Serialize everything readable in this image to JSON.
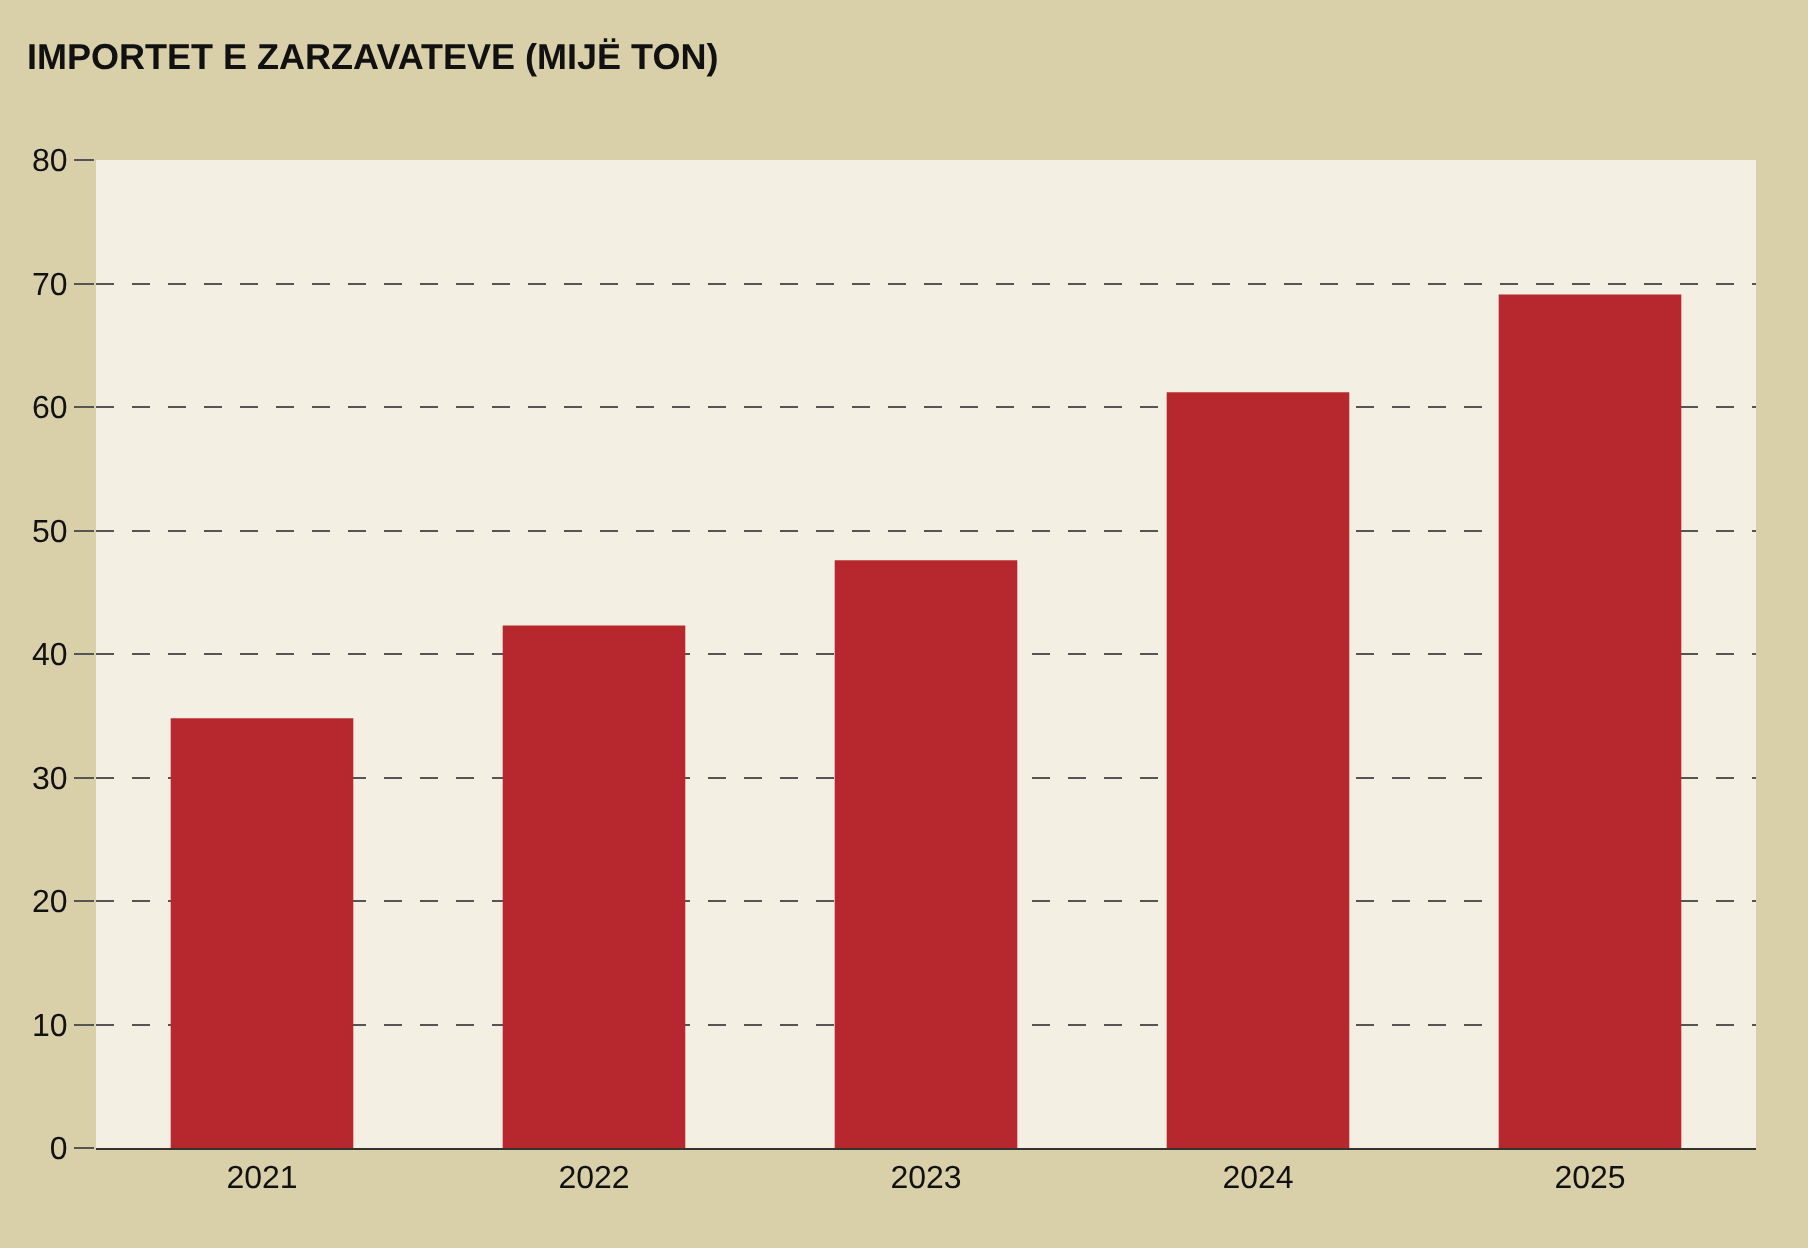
{
  "chart_data": {
    "type": "bar",
    "title": "IMPORTET E ZARZAVATEVE (MIJË TON)",
    "categories": [
      "2021",
      "2022",
      "2023",
      "2024",
      "2025"
    ],
    "values": [
      34.8,
      42.3,
      47.6,
      61.2,
      69.1
    ],
    "color": "#b7282e",
    "ylim": [
      0,
      80
    ],
    "yticks": [
      0,
      10,
      20,
      30,
      40,
      50,
      60,
      70,
      80
    ],
    "grid": "y",
    "line_style": "dashed"
  }
}
